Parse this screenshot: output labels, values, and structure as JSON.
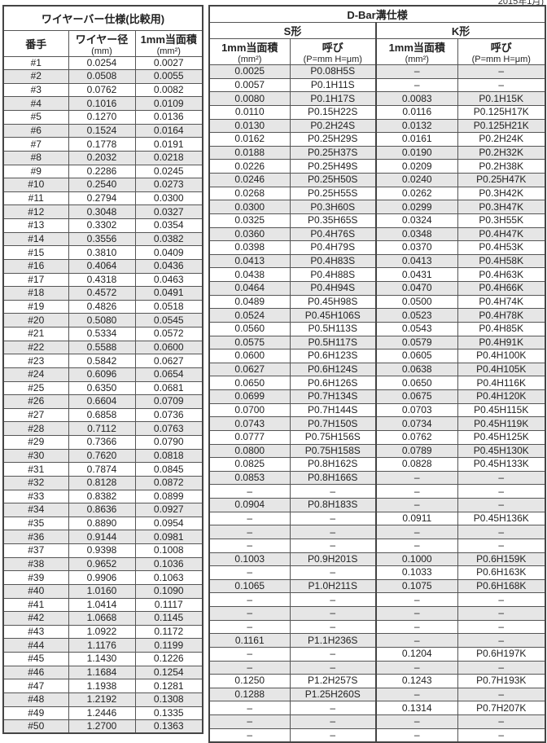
{
  "note": "2015年1月)",
  "left": {
    "title": "ワイヤーバー仕様(比較用)",
    "col_no": "番手",
    "col_dia": "ワイヤー径",
    "col_dia_unit": "(mm)",
    "col_area": "1mm当面積",
    "col_area_unit": "(mm²)",
    "rows": [
      [
        "#1",
        "0.0254",
        "0.0027"
      ],
      [
        "#2",
        "0.0508",
        "0.0055"
      ],
      [
        "#3",
        "0.0762",
        "0.0082"
      ],
      [
        "#4",
        "0.1016",
        "0.0109"
      ],
      [
        "#5",
        "0.1270",
        "0.0136"
      ],
      [
        "#6",
        "0.1524",
        "0.0164"
      ],
      [
        "#7",
        "0.1778",
        "0.0191"
      ],
      [
        "#8",
        "0.2032",
        "0.0218"
      ],
      [
        "#9",
        "0.2286",
        "0.0245"
      ],
      [
        "#10",
        "0.2540",
        "0.0273"
      ],
      [
        "#11",
        "0.2794",
        "0.0300"
      ],
      [
        "#12",
        "0.3048",
        "0.0327"
      ],
      [
        "#13",
        "0.3302",
        "0.0354"
      ],
      [
        "#14",
        "0.3556",
        "0.0382"
      ],
      [
        "#15",
        "0.3810",
        "0.0409"
      ],
      [
        "#16",
        "0.4064",
        "0.0436"
      ],
      [
        "#17",
        "0.4318",
        "0.0463"
      ],
      [
        "#18",
        "0.4572",
        "0.0491"
      ],
      [
        "#19",
        "0.4826",
        "0.0518"
      ],
      [
        "#20",
        "0.5080",
        "0.0545"
      ],
      [
        "#21",
        "0.5334",
        "0.0572"
      ],
      [
        "#22",
        "0.5588",
        "0.0600"
      ],
      [
        "#23",
        "0.5842",
        "0.0627"
      ],
      [
        "#24",
        "0.6096",
        "0.0654"
      ],
      [
        "#25",
        "0.6350",
        "0.0681"
      ],
      [
        "#26",
        "0.6604",
        "0.0709"
      ],
      [
        "#27",
        "0.6858",
        "0.0736"
      ],
      [
        "#28",
        "0.7112",
        "0.0763"
      ],
      [
        "#29",
        "0.7366",
        "0.0790"
      ],
      [
        "#30",
        "0.7620",
        "0.0818"
      ],
      [
        "#31",
        "0.7874",
        "0.0845"
      ],
      [
        "#32",
        "0.8128",
        "0.0872"
      ],
      [
        "#33",
        "0.8382",
        "0.0899"
      ],
      [
        "#34",
        "0.8636",
        "0.0927"
      ],
      [
        "#35",
        "0.8890",
        "0.0954"
      ],
      [
        "#36",
        "0.9144",
        "0.0981"
      ],
      [
        "#37",
        "0.9398",
        "0.1008"
      ],
      [
        "#38",
        "0.9652",
        "0.1036"
      ],
      [
        "#39",
        "0.9906",
        "0.1063"
      ],
      [
        "#40",
        "1.0160",
        "0.1090"
      ],
      [
        "#41",
        "1.0414",
        "0.1117"
      ],
      [
        "#42",
        "1.0668",
        "0.1145"
      ],
      [
        "#43",
        "1.0922",
        "0.1172"
      ],
      [
        "#44",
        "1.1176",
        "0.1199"
      ],
      [
        "#45",
        "1.1430",
        "0.1226"
      ],
      [
        "#46",
        "1.1684",
        "0.1254"
      ],
      [
        "#47",
        "1.1938",
        "0.1281"
      ],
      [
        "#48",
        "1.2192",
        "0.1308"
      ],
      [
        "#49",
        "1.2446",
        "0.1335"
      ],
      [
        "#50",
        "1.2700",
        "0.1363"
      ]
    ]
  },
  "right": {
    "title": "D-Bar溝仕様",
    "s_type": "S形",
    "k_type": "K形",
    "col_area": "1mm当面積",
    "col_area_unit": "(mm²)",
    "col_name": "呼び",
    "col_name_unit": "(P=mm H=μm)",
    "rows": [
      [
        "0.0025",
        "P0.08H5S",
        "–",
        "–"
      ],
      [
        "0.0057",
        "P0.1H11S",
        "–",
        "–"
      ],
      [
        "0.0080",
        "P0.1H17S",
        "0.0083",
        "P0.1H15K"
      ],
      [
        "0.0110",
        "P0.15H22S",
        "0.0116",
        "P0.125H17K"
      ],
      [
        "0.0130",
        "P0.2H24S",
        "0.0132",
        "P0.125H21K"
      ],
      [
        "0.0162",
        "P0.25H29S",
        "0.0161",
        "P0.2H24K"
      ],
      [
        "0.0188",
        "P0.25H37S",
        "0.0190",
        "P0.2H32K"
      ],
      [
        "0.0226",
        "P0.25H49S",
        "0.0209",
        "P0.2H38K"
      ],
      [
        "0.0246",
        "P0.25H50S",
        "0.0240",
        "P0.25H47K"
      ],
      [
        "0.0268",
        "P0.25H55S",
        "0.0262",
        "P0.3H42K"
      ],
      [
        "0.0300",
        "P0.3H60S",
        "0.0299",
        "P0.3H47K"
      ],
      [
        "0.0325",
        "P0.35H65S",
        "0.0324",
        "P0.3H55K"
      ],
      [
        "0.0360",
        "P0.4H76S",
        "0.0348",
        "P0.4H47K"
      ],
      [
        "0.0398",
        "P0.4H79S",
        "0.0370",
        "P0.4H53K"
      ],
      [
        "0.0413",
        "P0.4H83S",
        "0.0413",
        "P0.4H58K"
      ],
      [
        "0.0438",
        "P0.4H88S",
        "0.0431",
        "P0.4H63K"
      ],
      [
        "0.0464",
        "P0.4H94S",
        "0.0470",
        "P0.4H66K"
      ],
      [
        "0.0489",
        "P0.45H98S",
        "0.0500",
        "P0.4H74K"
      ],
      [
        "0.0524",
        "P0.45H106S",
        "0.0523",
        "P0.4H78K"
      ],
      [
        "0.0560",
        "P0.5H113S",
        "0.0543",
        "P0.4H85K"
      ],
      [
        "0.0575",
        "P0.5H117S",
        "0.0579",
        "P0.4H91K"
      ],
      [
        "0.0600",
        "P0.6H123S",
        "0.0605",
        "P0.4H100K"
      ],
      [
        "0.0627",
        "P0.6H124S",
        "0.0638",
        "P0.4H105K"
      ],
      [
        "0.0650",
        "P0.6H126S",
        "0.0650",
        "P0.4H116K"
      ],
      [
        "0.0699",
        "P0.7H134S",
        "0.0675",
        "P0.4H120K"
      ],
      [
        "0.0700",
        "P0.7H144S",
        "0.0703",
        "P0.45H115K"
      ],
      [
        "0.0743",
        "P0.7H150S",
        "0.0734",
        "P0.45H119K"
      ],
      [
        "0.0777",
        "P0.75H156S",
        "0.0762",
        "P0.45H125K"
      ],
      [
        "0.0800",
        "P0.75H158S",
        "0.0789",
        "P0.45H130K"
      ],
      [
        "0.0825",
        "P0.8H162S",
        "0.0828",
        "P0.45H133K"
      ],
      [
        "0.0853",
        "P0.8H166S",
        "–",
        "–"
      ],
      [
        "–",
        "–",
        "–",
        "–"
      ],
      [
        "0.0904",
        "P0.8H183S",
        "–",
        "–"
      ],
      [
        "–",
        "–",
        "0.0911",
        "P0.45H136K"
      ],
      [
        "–",
        "–",
        "–",
        "–"
      ],
      [
        "–",
        "–",
        "–",
        "–"
      ],
      [
        "0.1003",
        "P0.9H201S",
        "0.1000",
        "P0.6H159K"
      ],
      [
        "–",
        "–",
        "0.1033",
        "P0.6H163K"
      ],
      [
        "0.1065",
        "P1.0H211S",
        "0.1075",
        "P0.6H168K"
      ],
      [
        "–",
        "–",
        "–",
        "–"
      ],
      [
        "–",
        "–",
        "–",
        "–"
      ],
      [
        "–",
        "–",
        "–",
        "–"
      ],
      [
        "0.1161",
        "P1.1H236S",
        "–",
        "–"
      ],
      [
        "–",
        "–",
        "0.1204",
        "P0.6H197K"
      ],
      [
        "–",
        "–",
        "–",
        "–"
      ],
      [
        "0.1250",
        "P1.2H257S",
        "0.1243",
        "P0.7H193K"
      ],
      [
        "0.1288",
        "P1.25H260S",
        "–",
        "–"
      ],
      [
        "–",
        "–",
        "0.1314",
        "P0.7H207K"
      ],
      [
        "–",
        "–",
        "–",
        "–"
      ],
      [
        "–",
        "–",
        "–",
        "–"
      ]
    ]
  }
}
